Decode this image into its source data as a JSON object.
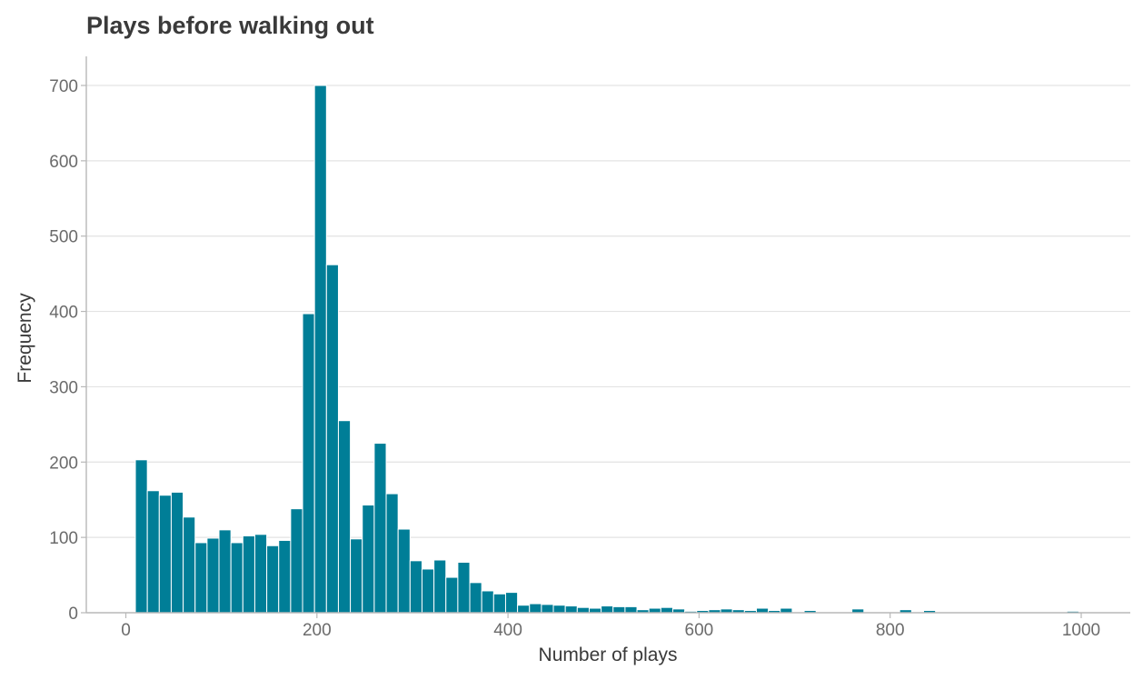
{
  "chart_data": {
    "type": "bar",
    "title": "Plays before walking out",
    "xlabel": "Number of plays",
    "ylabel": "Frequency",
    "xlim": [
      -40,
      1040
    ],
    "ylim": [
      0,
      735
    ],
    "x_ticks": [
      0,
      200,
      400,
      600,
      800,
      1000
    ],
    "y_ticks": [
      0,
      100,
      200,
      300,
      400,
      500,
      600,
      700
    ],
    "grid": "horizontal",
    "bar_color": "#007e97",
    "bin_width": 12.5,
    "bins_start": [
      10,
      22.5,
      35,
      47.5,
      60,
      72.5,
      85,
      97.5,
      110,
      122.5,
      135,
      147.5,
      160,
      172.5,
      185,
      197.5,
      210,
      222.5,
      235,
      247.5,
      260,
      272.5,
      285,
      297.5,
      310,
      322.5,
      335,
      347.5,
      360,
      372.5,
      385,
      397.5,
      410,
      422.5,
      435,
      447.5,
      460,
      472.5,
      485,
      497.5,
      510,
      522.5,
      535,
      547.5,
      560,
      572.5,
      585,
      597.5,
      610,
      622.5,
      635,
      647.5,
      660,
      672.5,
      685,
      710,
      747.5,
      760,
      810,
      835,
      985
    ],
    "values": [
      203,
      162,
      156,
      160,
      127,
      93,
      99,
      110,
      93,
      102,
      104,
      89,
      96,
      138,
      397,
      700,
      462,
      255,
      98,
      143,
      225,
      158,
      111,
      69,
      58,
      70,
      47,
      67,
      40,
      29,
      25,
      27,
      10,
      12,
      11,
      10,
      9,
      7,
      6,
      9,
      8,
      8,
      4,
      6,
      7,
      5,
      2,
      3,
      4,
      5,
      4,
      3,
      6,
      3,
      6,
      3,
      1,
      5,
      4,
      3,
      2
    ]
  }
}
